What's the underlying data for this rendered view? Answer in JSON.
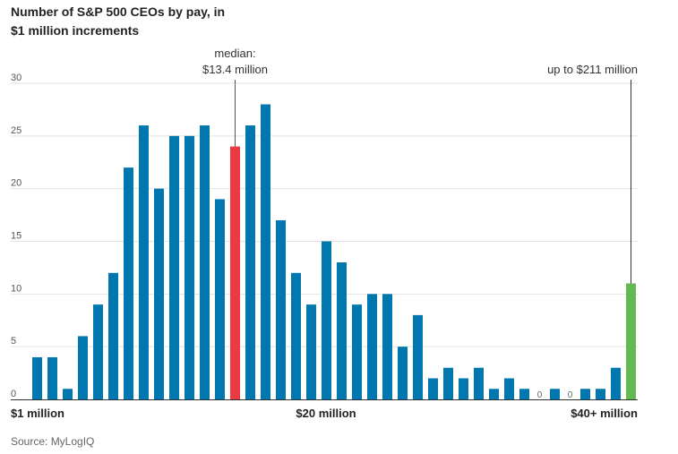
{
  "chart_data": {
    "type": "bar",
    "title": "Number of S&P 500 CEOs by pay, in $1 million increments",
    "xlabel": "",
    "ylabel": "",
    "ylim": [
      0,
      30
    ],
    "yticks": [
      "0",
      "5",
      "10",
      "15",
      "20",
      "25",
      "30"
    ],
    "xtick_labels": [
      "$1 million",
      "$20 million",
      "$40+ million"
    ],
    "values": [
      4,
      4,
      1,
      6,
      9,
      12,
      22,
      26,
      20,
      25,
      25,
      26,
      19,
      24,
      26,
      28,
      17,
      12,
      9,
      15,
      13,
      9,
      10,
      10,
      5,
      8,
      2,
      3,
      2,
      3,
      1,
      2,
      1,
      0,
      1,
      0,
      1,
      1,
      3,
      11
    ],
    "median_index": 13,
    "last_index": 39,
    "colors": {
      "default": "#0077ae",
      "median": "#ec3a43",
      "last": "#64b950"
    },
    "annotations": {
      "median_line1": "median:",
      "median_line2": "$13.4 million",
      "top": "up to $211 million"
    },
    "zero_label": "0",
    "grid": true
  },
  "source": "Source: MyLogIQ"
}
